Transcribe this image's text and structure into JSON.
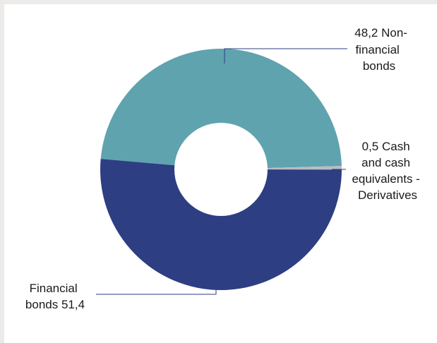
{
  "chart_data": {
    "type": "pie",
    "style": "donut",
    "slices": [
      {
        "label": "Non-financial bonds",
        "value": 48.2,
        "color": "#5fa3ae",
        "text_lines": [
          "48,2  Non-",
          "financial",
          "bonds"
        ]
      },
      {
        "label": "Cash and cash equivalents - Derivatives",
        "value": 0.5,
        "color": "#b9bcc2",
        "text_lines": [
          "0,5  Cash",
          "and cash",
          "equivalents -",
          "Derivatives"
        ]
      },
      {
        "label": "Financial bonds",
        "value": 51.4,
        "color": "#2e3e82",
        "text_lines": [
          "Financial",
          "bonds  51,4"
        ]
      }
    ],
    "legend": "none"
  }
}
